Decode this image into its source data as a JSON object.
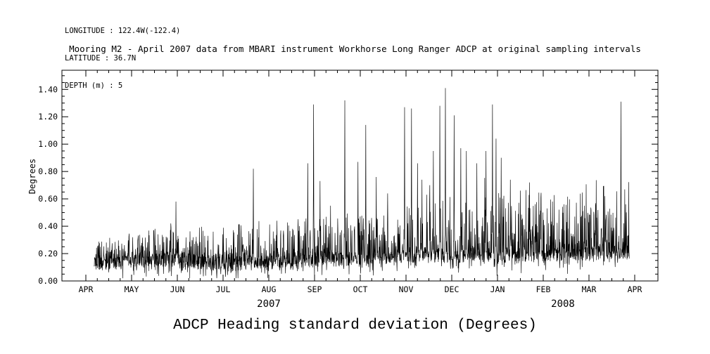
{
  "header": {
    "longitude": "LONGITUDE : 122.4W(-122.4)",
    "latitude": "LATITUDE : 36.7N",
    "depth": "DEPTH (m) : 5"
  },
  "title": "Mooring M2 - April 2007 data from MBARI instrument Workhorse Long Ranger ADCP at original sampling intervals",
  "bottom_title": "ADCP Heading standard deviation (Degrees)",
  "chart_data": {
    "type": "line",
    "series_name": "ADCP heading standard deviation",
    "title": "Mooring M2 - April 2007 data from MBARI instrument Workhorse Long Ranger ADCP at original sampling intervals",
    "xlabel": "",
    "ylabel": "Degrees",
    "ylim": [
      0,
      1.54
    ],
    "yticks": [
      0.0,
      0.2,
      0.4,
      0.6,
      0.8,
      1.0,
      1.2,
      1.4
    ],
    "ytick_labels": [
      "0.00",
      "0.20",
      "0.40",
      "0.60",
      "0.80",
      "1.00",
      "1.20",
      "1.40"
    ],
    "x_tick_labels": [
      "APR",
      "MAY",
      "JUN",
      "JUL",
      "AUG",
      "SEP",
      "OCT",
      "NOV",
      "DEC",
      "JAN",
      "FEB",
      "MAR",
      "APR"
    ],
    "year_labels": [
      {
        "label": "2007",
        "month_position": 4.0
      },
      {
        "label": "2008",
        "month_position": 10.43
      }
    ],
    "grid": false,
    "legend": "none",
    "line_color": "#000000",
    "data_start_month": 0.18,
    "data_end_month": 11.88,
    "baseline_monthly": [
      0.13,
      0.14,
      0.15,
      0.12,
      0.14,
      0.15,
      0.16,
      0.18,
      0.18,
      0.18,
      0.19,
      0.2,
      0.21
    ],
    "noise": {
      "seed": 42,
      "points": 2400,
      "jitter": 0.05,
      "up_base": 0.18,
      "up_growth": 0.35,
      "down": 0.1
    },
    "dips": [
      [
        2.86,
        0.02
      ],
      [
        2.75,
        0.04
      ],
      [
        2.95,
        0.05
      ]
    ],
    "spikes": [
      [
        1.86,
        0.42
      ],
      [
        1.97,
        0.58
      ],
      [
        3.66,
        0.82
      ],
      [
        4.18,
        0.44
      ],
      [
        4.85,
        0.86
      ],
      [
        4.98,
        1.29
      ],
      [
        5.12,
        0.73
      ],
      [
        5.35,
        0.55
      ],
      [
        5.66,
        1.32
      ],
      [
        5.95,
        0.87
      ],
      [
        6.12,
        1.14
      ],
      [
        6.35,
        0.76
      ],
      [
        6.6,
        0.64
      ],
      [
        6.97,
        1.27
      ],
      [
        7.12,
        1.26
      ],
      [
        7.25,
        0.86
      ],
      [
        7.35,
        0.74
      ],
      [
        7.45,
        0.63
      ],
      [
        7.52,
        0.7
      ],
      [
        7.6,
        0.95
      ],
      [
        7.74,
        1.28
      ],
      [
        7.86,
        1.41
      ],
      [
        8.05,
        1.21
      ],
      [
        8.2,
        0.97
      ],
      [
        8.32,
        0.95
      ],
      [
        8.55,
        0.86
      ],
      [
        8.75,
        0.95
      ],
      [
        8.89,
        1.29
      ],
      [
        8.97,
        1.04
      ],
      [
        9.08,
        0.9
      ],
      [
        9.28,
        0.74
      ],
      [
        9.5,
        0.66
      ],
      [
        9.7,
        0.72
      ],
      [
        9.95,
        0.61
      ],
      [
        10.2,
        0.58
      ],
      [
        10.45,
        0.56
      ],
      [
        10.9,
        0.55
      ],
      [
        11.35,
        0.62
      ],
      [
        11.7,
        1.31
      ],
      [
        11.8,
        0.56
      ]
    ]
  }
}
